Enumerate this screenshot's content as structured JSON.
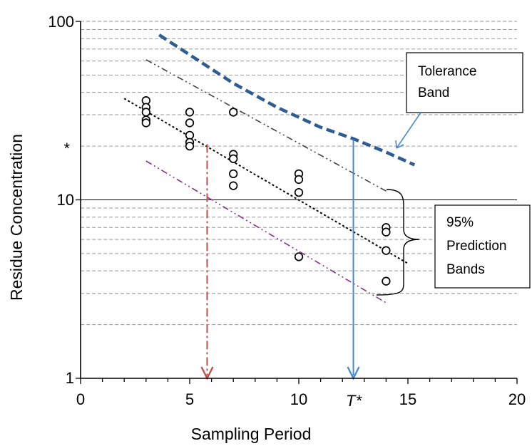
{
  "chart_data": {
    "type": "scatter",
    "title": "",
    "xlabel": "Sampling Period",
    "ylabel": "Residue Concentration",
    "xlim": [
      0,
      20
    ],
    "ylim": [
      1,
      100
    ],
    "y_scale": "log",
    "x_ticks": [
      {
        "value": 0,
        "label": "0"
      },
      {
        "value": 5,
        "label": "5"
      },
      {
        "value": 10,
        "label": "10"
      },
      {
        "value": 15,
        "label": "15"
      },
      {
        "value": 20,
        "label": "20"
      }
    ],
    "y_ticks": [
      {
        "value": 1,
        "label": "1"
      },
      {
        "value": 10,
        "label": "10"
      },
      {
        "value": 100,
        "label": "100"
      }
    ],
    "grid": "horizontal minor dashed (log), major solid",
    "points": [
      {
        "x": 3,
        "y": 36
      },
      {
        "x": 3,
        "y": 33
      },
      {
        "x": 3,
        "y": 31
      },
      {
        "x": 3,
        "y": 28
      },
      {
        "x": 3,
        "y": 27
      },
      {
        "x": 5,
        "y": 31
      },
      {
        "x": 5,
        "y": 27
      },
      {
        "x": 5,
        "y": 23
      },
      {
        "x": 5,
        "y": 21
      },
      {
        "x": 5,
        "y": 20
      },
      {
        "x": 7,
        "y": 31
      },
      {
        "x": 7,
        "y": 18
      },
      {
        "x": 7,
        "y": 17
      },
      {
        "x": 7,
        "y": 14
      },
      {
        "x": 7,
        "y": 12
      },
      {
        "x": 10,
        "y": 14
      },
      {
        "x": 10,
        "y": 13
      },
      {
        "x": 10,
        "y": 11
      },
      {
        "x": 10,
        "y": 4.8
      },
      {
        "x": 14,
        "y": 7
      },
      {
        "x": 14,
        "y": 6.6
      },
      {
        "x": 14,
        "y": 5.2
      },
      {
        "x": 14,
        "y": 3.5
      }
    ],
    "lines": [
      {
        "role": "tolerance",
        "style": "dashed-thick",
        "color": "#2e5d91",
        "x": [
          3.6,
          5,
          7,
          9,
          11,
          12.5,
          14,
          15.3
        ],
        "y": [
          84,
          65,
          45,
          33,
          25.5,
          22,
          18.5,
          15.7
        ]
      },
      {
        "role": "regression",
        "style": "dotted",
        "color": "#000000",
        "x": [
          2,
          15
        ],
        "y": [
          37,
          4.4
        ]
      },
      {
        "role": "upper-prediction",
        "style": "dash-dot-dot",
        "color": "#444444",
        "x": [
          3,
          14
        ],
        "y": [
          61,
          11.2
        ]
      },
      {
        "role": "lower-prediction",
        "style": "dash-dot-dot",
        "color": "#8b2f8f",
        "x": [
          3,
          14
        ],
        "y": [
          16.5,
          2.65
        ]
      }
    ],
    "markers": [
      {
        "label": "*",
        "y": 20
      },
      {
        "label": "T*",
        "x": 12.5
      }
    ],
    "arrows": [
      {
        "color": "#c0504d",
        "style": "dash-dot",
        "x": 5.8,
        "y_from": 20.5,
        "y_to": 1
      },
      {
        "color": "#4a8ad4",
        "style": "solid",
        "x": 12.5,
        "y_from": 21.8,
        "y_to": 1
      }
    ],
    "annotations": [
      {
        "id": "tolerance",
        "lines": [
          "Tolerance",
          "Band"
        ]
      },
      {
        "id": "prediction",
        "lines": [
          "95%",
          "Prediction",
          "Bands"
        ]
      }
    ]
  }
}
